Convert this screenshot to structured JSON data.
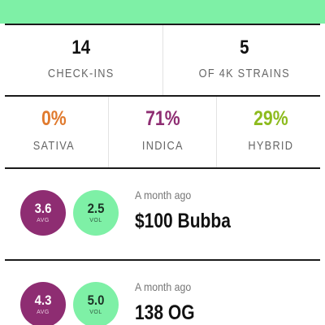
{
  "colors": {
    "accent_green": "#7ef0a6",
    "indica_purple": "#8e2d72",
    "sativa_orange": "#e07a2e",
    "hybrid_lime": "#8dbb1e"
  },
  "summary": {
    "checkins": {
      "value": "14",
      "label": "CHECK-INS"
    },
    "strains": {
      "value": "5",
      "label": "OF 4K STRAINS"
    }
  },
  "breakdown": {
    "sativa": {
      "value": "0%",
      "label": "SATIVA"
    },
    "indica": {
      "value": "71%",
      "label": "INDICA"
    },
    "hybrid": {
      "value": "29%",
      "label": "HYBRID"
    }
  },
  "checkins": [
    {
      "avg": "3.6",
      "avg_label": "AVG",
      "vol": "2.5",
      "vol_label": "VOL",
      "when": "A month ago",
      "strain": "$100 Bubba"
    },
    {
      "avg": "4.3",
      "avg_label": "AVG",
      "vol": "5.0",
      "vol_label": "VOL",
      "when": "A month ago",
      "strain": "138 OG"
    }
  ]
}
